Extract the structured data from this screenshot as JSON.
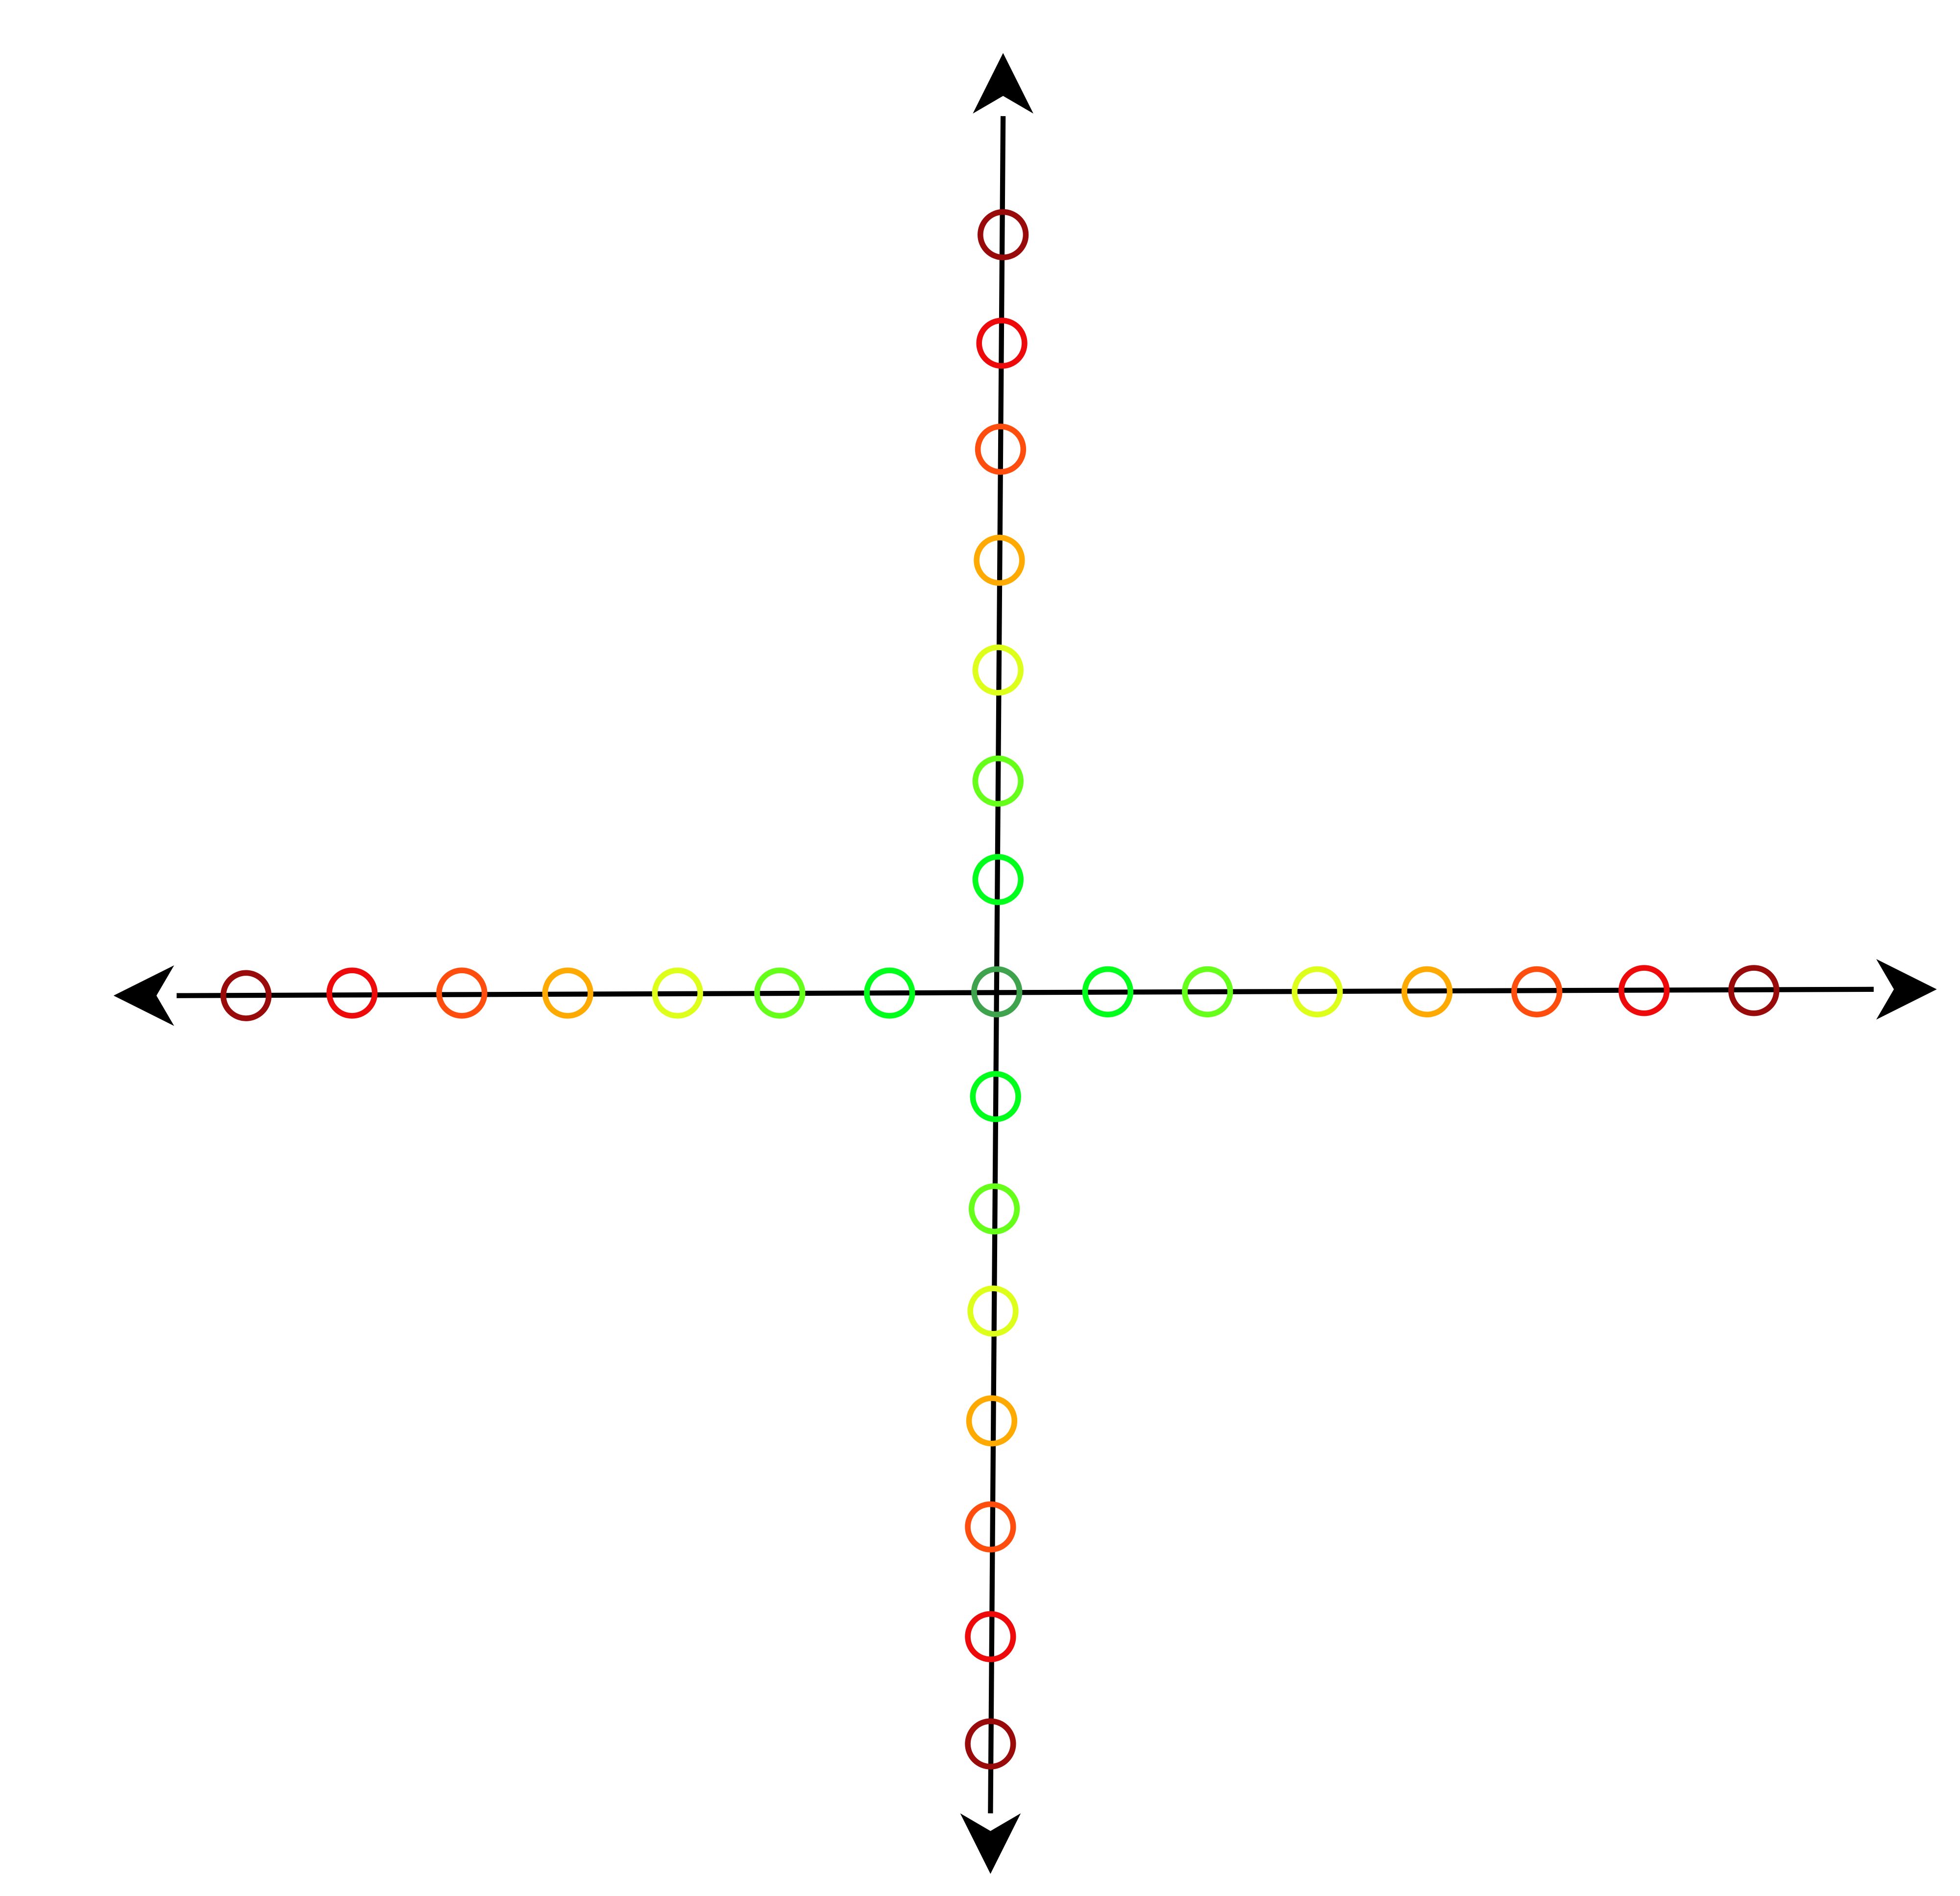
{
  "diagram": {
    "axes": {
      "arrow_color": "#000000",
      "directions": [
        "left",
        "right",
        "up",
        "down"
      ]
    },
    "origin_marker": {
      "color": "#3FA34D"
    },
    "ring_colors_by_distance": [
      "#00FF1A",
      "#66FF1A",
      "#DDFF1A",
      "#FFAA00",
      "#FF4D0D",
      "#EE0A0A",
      "#990A0A"
    ]
  }
}
